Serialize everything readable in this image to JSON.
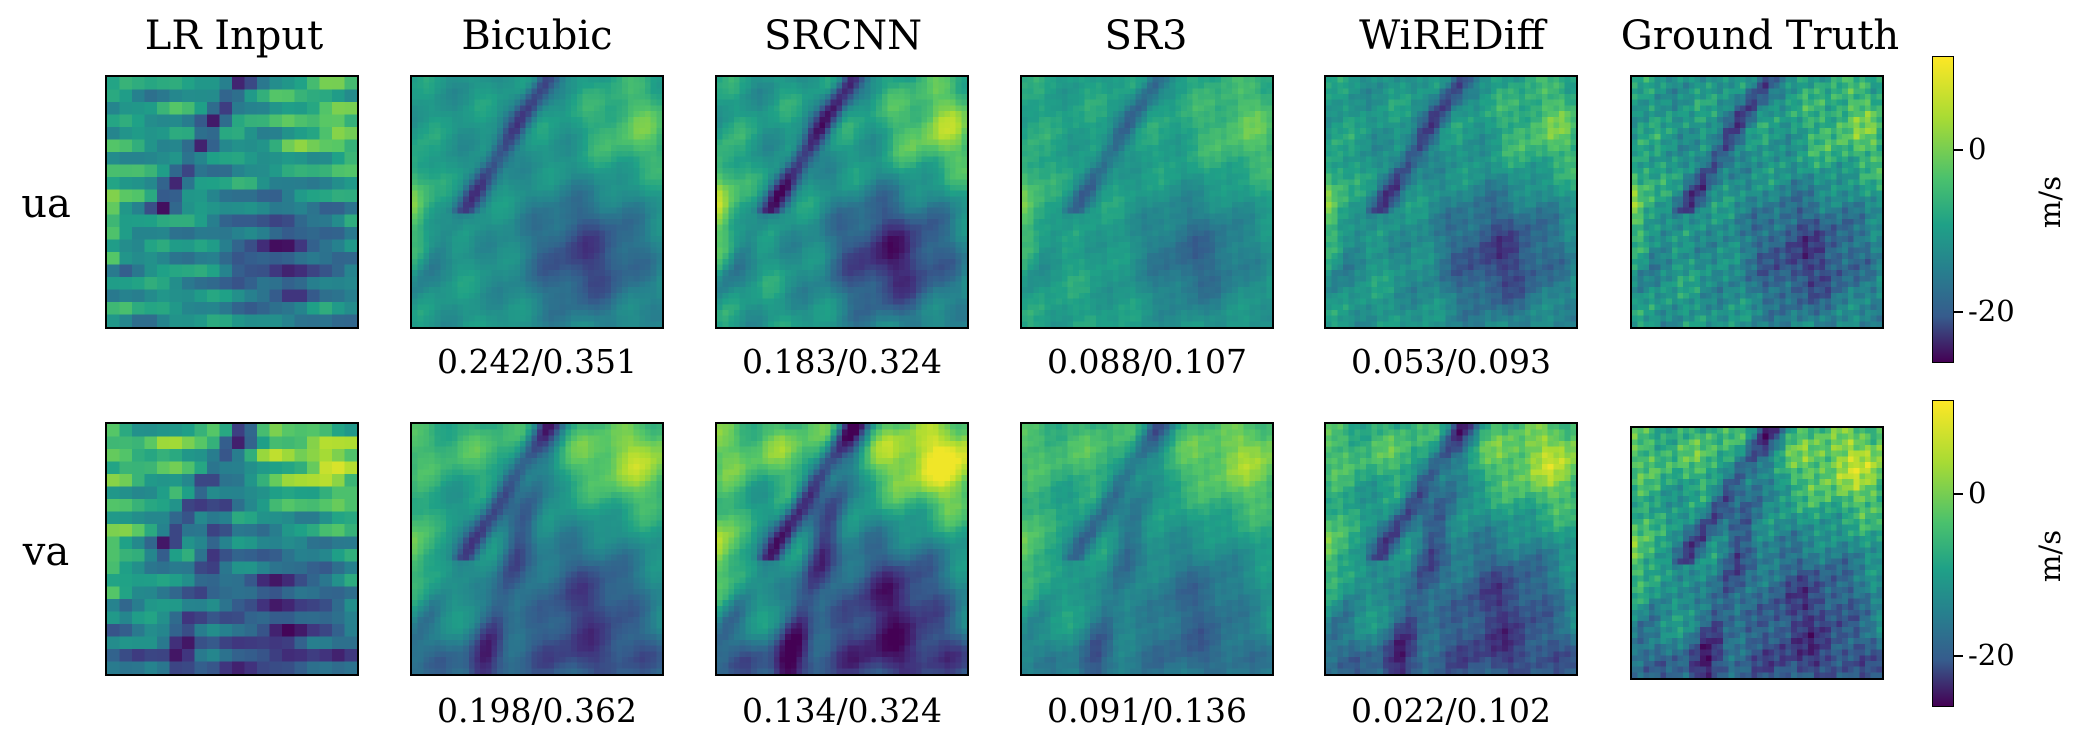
{
  "columns": [
    {
      "title": "LR Input"
    },
    {
      "title": "Bicubic"
    },
    {
      "title": "SRCNN"
    },
    {
      "title": "SR3"
    },
    {
      "title": "WiREDiff"
    },
    {
      "title": "Ground Truth"
    }
  ],
  "rows": [
    {
      "label": "ua",
      "metrics": [
        "",
        "0.242/0.351",
        "0.183/0.324",
        "0.088/0.107",
        "0.053/0.093",
        ""
      ]
    },
    {
      "label": "va",
      "metrics": [
        "",
        "0.198/0.362",
        "0.134/0.324",
        "0.091/0.136",
        "0.022/0.102",
        ""
      ]
    }
  ],
  "colorbars": [
    {
      "unit": "m/s",
      "ticks": [
        "0",
        "-20"
      ]
    },
    {
      "unit": "m/s",
      "ticks": [
        "0",
        "-20"
      ]
    }
  ],
  "colors": {
    "viridis_low": "#3b1a5c",
    "viridis_mid": "#2a8a8c",
    "viridis_high": "#e3e536"
  }
}
